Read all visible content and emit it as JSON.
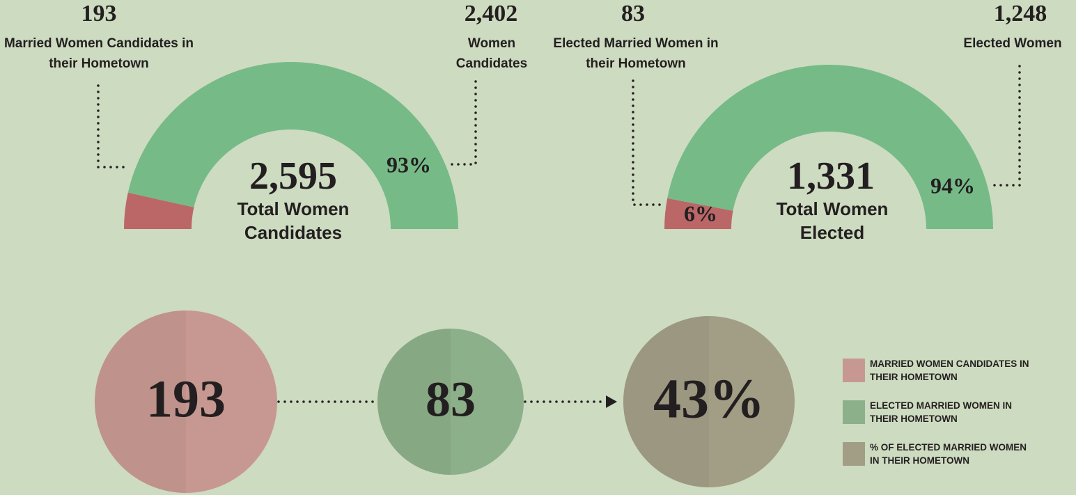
{
  "chart_data": [
    {
      "type": "pie",
      "half": true,
      "donut": true,
      "categories": [
        "Married Women Candidates in their Hometown",
        "Women Candidates"
      ],
      "counts": [
        193,
        2402
      ],
      "count_labels": [
        "193",
        "2,402"
      ],
      "values": [
        7,
        93
      ],
      "value_labels": [
        "7%",
        "93%"
      ],
      "colors": [
        "#bb6767",
        "#76ba88"
      ],
      "total": {
        "value": 2595,
        "label": "2,595"
      },
      "total_label": "Total Women Candidates"
    },
    {
      "type": "pie",
      "half": true,
      "donut": true,
      "categories": [
        "Elected Married Women in their Hometown",
        "Elected Women"
      ],
      "counts": [
        83,
        1248
      ],
      "count_labels": [
        "83",
        "1,248"
      ],
      "values": [
        6,
        94
      ],
      "value_labels": [
        "6%",
        "94%"
      ],
      "colors": [
        "#bb6767",
        "#76ba88"
      ],
      "total": {
        "value": 1331,
        "label": "1,331"
      },
      "total_label": "Total Women Elected"
    },
    {
      "type": "bubble",
      "categories": [
        "MARRIED WOMEN CANDIDATES IN THEIR HOMETOWN",
        "ELECTED MARRIED WOMEN IN THEIR HOMETOWN",
        "% OF ELECTED MARRIED WOMEN IN THEIR HOMETOWN"
      ],
      "values": [
        193,
        83,
        43
      ],
      "value_labels": [
        "193",
        "83",
        "43%"
      ],
      "colors": [
        "#c79891",
        "#8cb08a",
        "#a29e86"
      ]
    }
  ]
}
